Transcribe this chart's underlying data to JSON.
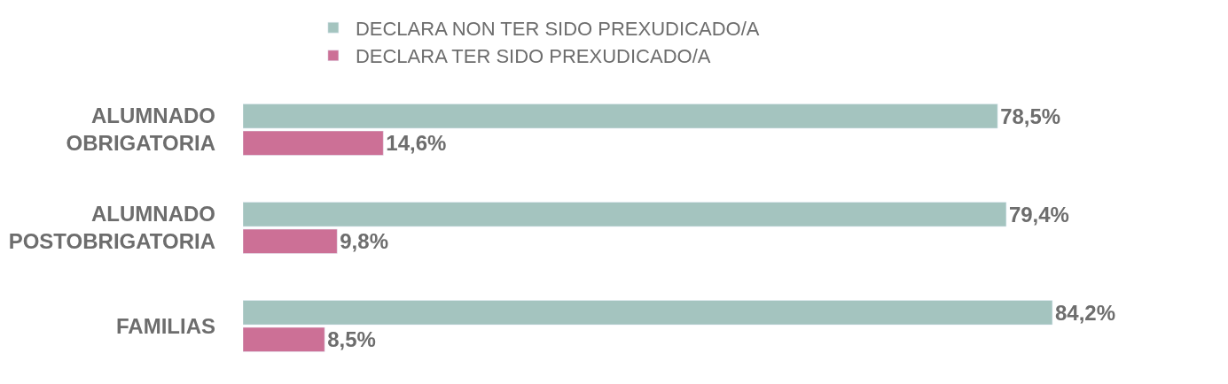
{
  "chart_data": {
    "type": "bar",
    "orientation": "horizontal",
    "categories": [
      "ALUMNADO\nOBRIGATORIA",
      "ALUMNADO\nPOSTOBRIGATORIA",
      "FAMILIAS"
    ],
    "series": [
      {
        "name": "DECLARA NON TER SIDO PREXUDICADO/A",
        "color": "#a4c4bf",
        "values": [
          78.5,
          79.4,
          84.2
        ],
        "value_labels": [
          "78,5%",
          "79,4%",
          "84,2%"
        ]
      },
      {
        "name": "DECLARA TER SIDO PREXUDICADO/A",
        "color": "#cc7096",
        "values": [
          14.6,
          9.8,
          8.5
        ],
        "value_labels": [
          "14,6%",
          "9,8%",
          "8,5%"
        ]
      }
    ],
    "legend": "top"
  }
}
